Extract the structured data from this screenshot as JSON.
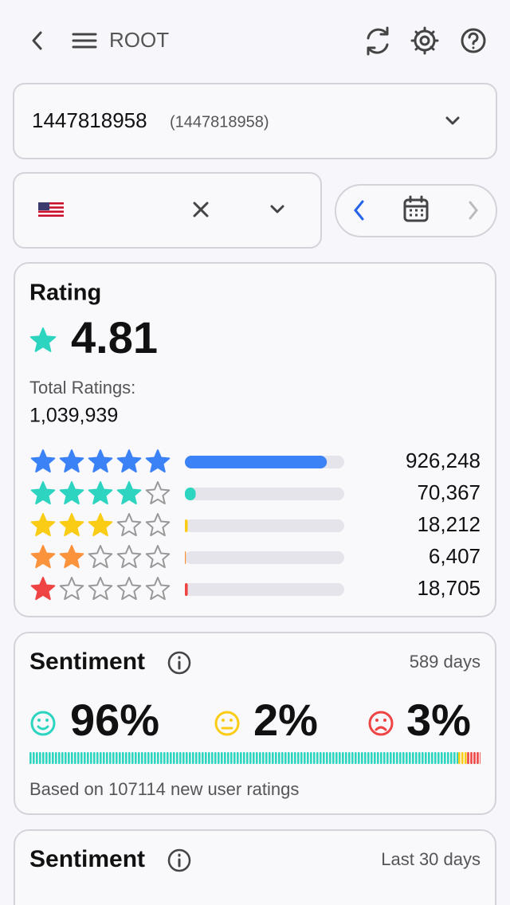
{
  "header": {
    "title": "ROOT"
  },
  "app_selector": {
    "name": "1447818958",
    "id": "(1447818958)"
  },
  "rating": {
    "title": "Rating",
    "average": "4.81",
    "total_label": "Total Ratings:",
    "total": {
      "value": 1039939,
      "label": "1,039,939"
    },
    "breakdown": [
      {
        "stars": 5,
        "color": "#3b82f6",
        "count": {
          "value": 926248,
          "label": "926,248"
        }
      },
      {
        "stars": 4,
        "color": "#2dd4bf",
        "count": {
          "value": 70367,
          "label": "70,367"
        }
      },
      {
        "stars": 3,
        "color": "#facc15",
        "count": {
          "value": 18212,
          "label": "18,212"
        }
      },
      {
        "stars": 2,
        "color": "#fb923c",
        "count": {
          "value": 6407,
          "label": "6,407"
        }
      },
      {
        "stars": 1,
        "color": "#ef4444",
        "count": {
          "value": 18705,
          "label": "18,705"
        }
      }
    ]
  },
  "sentiment": [
    {
      "title": "Sentiment",
      "period": "589 days",
      "positive": {
        "value": 96,
        "label": "96%",
        "color": "#2dd4bf"
      },
      "neutral": {
        "value": 2,
        "label": "2%",
        "color": "#facc15"
      },
      "negative": {
        "value": 3,
        "label": "3%",
        "color": "#ef4444"
      },
      "note": "Based on 107114 new user ratings"
    },
    {
      "title": "Sentiment",
      "period": "Last 30 days"
    }
  ]
}
